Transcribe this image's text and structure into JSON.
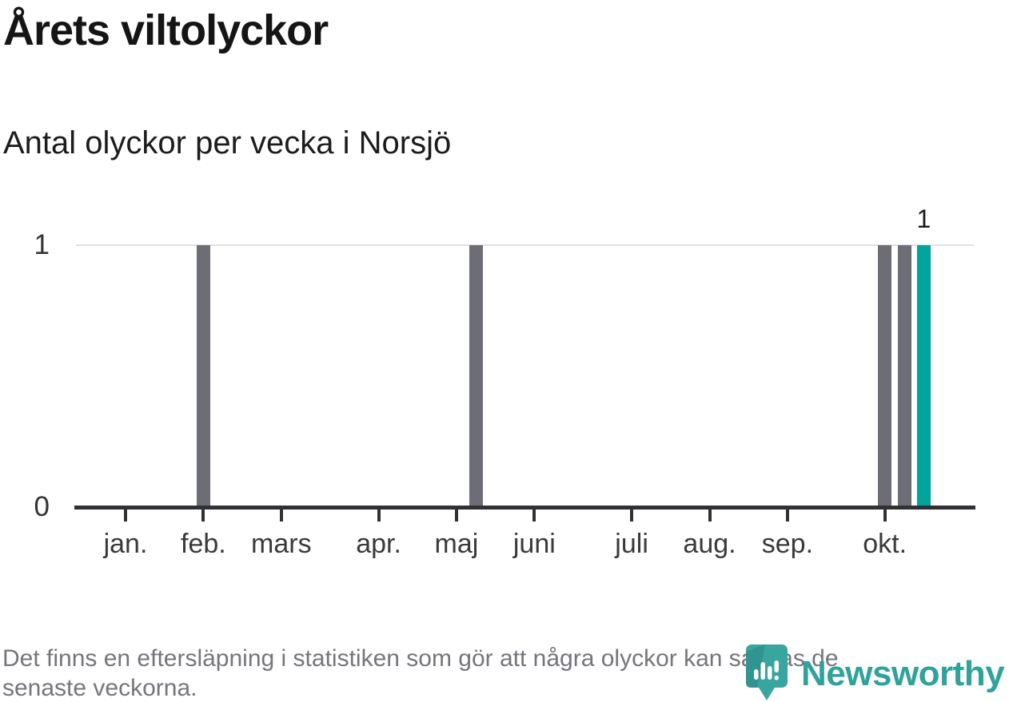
{
  "title": "Årets viltolyckor",
  "subtitle": "Antal olyckor per vecka i Norsjö",
  "footer": {
    "line1": "Det finns en eftersläpning i statistiken som gör att några olyckor kan saknas de",
    "line2": "senaste veckorna."
  },
  "logo": {
    "name": "Newsworthy",
    "icon": "newsworthy-badge-icon"
  },
  "colors": {
    "bar_default": "#6d6d75",
    "bar_highlight": "#00a49c",
    "gridline": "#e1e1e1",
    "axis": "#303036",
    "title_text": "#151515",
    "footer_text": "#75757d",
    "logo_teal": "#2fa29c",
    "data_label": "#1b1b1b"
  },
  "chart_data": {
    "type": "bar",
    "title": "Årets viltolyckor",
    "subtitle": "Antal olyckor per vecka i Norsjö",
    "xlabel": "",
    "ylabel": "",
    "x_unit": "vecka",
    "ylim": [
      0,
      1
    ],
    "y_ticks": [
      {
        "label": "1",
        "value": 1
      },
      {
        "label": "0",
        "value": 0
      }
    ],
    "grid": "single horizontal gridline at y=1",
    "legend_position": "none",
    "month_ticks": [
      {
        "label": "jan.",
        "week": 1
      },
      {
        "label": "feb.",
        "week": 5
      },
      {
        "label": "mars",
        "week": 9
      },
      {
        "label": "apr.",
        "week": 14
      },
      {
        "label": "maj",
        "week": 18
      },
      {
        "label": "juni",
        "week": 22
      },
      {
        "label": "juli",
        "week": 27
      },
      {
        "label": "aug.",
        "week": 31
      },
      {
        "label": "sep.",
        "week": 35
      },
      {
        "label": "okt.",
        "week": 40
      }
    ],
    "weeks_range": [
      1,
      44
    ],
    "default_value_other_weeks": 0,
    "bars": [
      {
        "week": 5,
        "value": 1,
        "highlight": false
      },
      {
        "week": 19,
        "value": 1,
        "highlight": false
      },
      {
        "week": 40,
        "value": 1,
        "highlight": false
      },
      {
        "week": 41,
        "value": 1,
        "highlight": false
      },
      {
        "week": 42,
        "value": 1,
        "highlight": true,
        "data_label": "1"
      }
    ]
  }
}
